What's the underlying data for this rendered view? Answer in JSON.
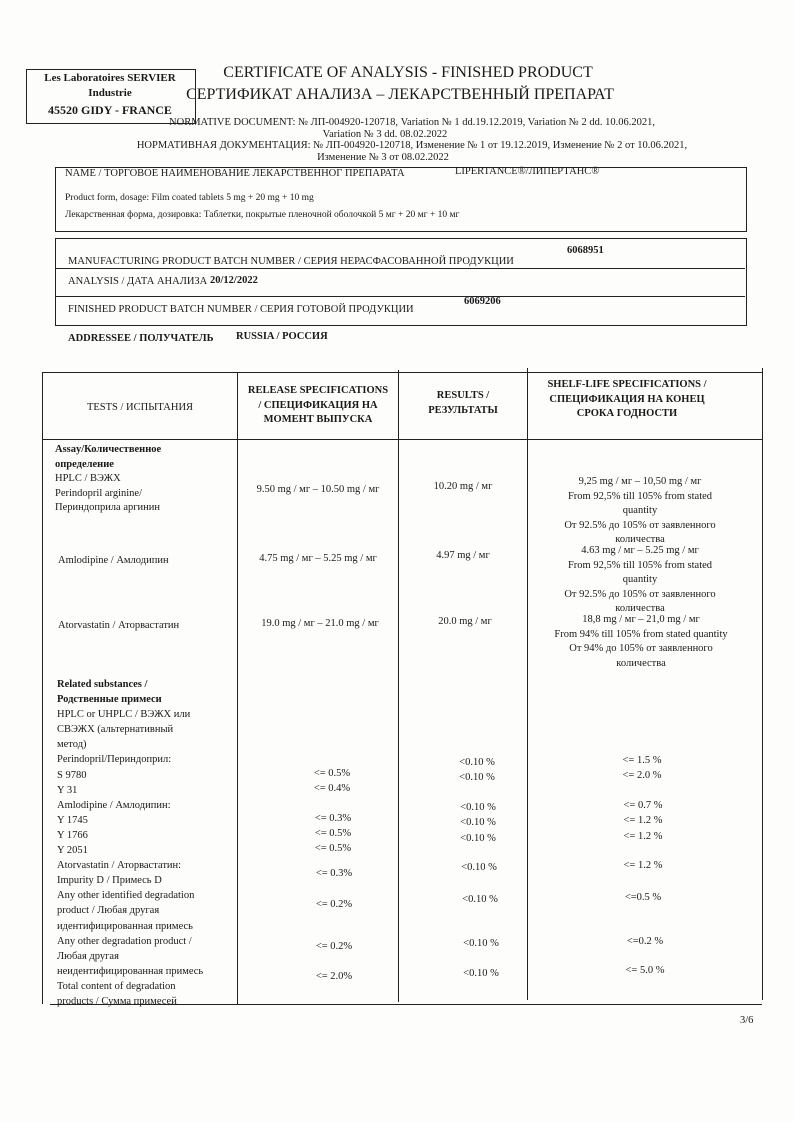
{
  "logo": {
    "line1": "Les Laboratoires SERVIER",
    "line2": "Industrie",
    "line3": "45520  GIDY - FRANCE"
  },
  "title": {
    "en": "CERTIFICATE OF ANALYSIS - FINISHED PRODUCT",
    "ru": "СЕРТИФИКАТ АНАЛИЗА – ЛЕКАРСТВЕННЫЙ ПРЕПАРАТ"
  },
  "normative": {
    "en1": "NORMATIVE DOCUMENT: № ЛП-004920-120718, Variation № 1 dd.19.12.2019, Variation № 2 dd. 10.06.2021,",
    "en2": "Variation № 3 dd. 08.02.2022",
    "ru1": "НОРМАТИВНАЯ ДОКУМЕНТАЦИЯ: № ЛП-004920-120718, Изменение № 1 от 19.12.2019, Изменение № 2 от 10.06.2021,",
    "ru2": "Изменение № 3 от 08.02.2022"
  },
  "product": {
    "name_label": "NAME / ТОРГОВОЕ НАИМЕНОВАНИЕ ЛЕКАРСТВЕННОГ ПРЕПАРАТА",
    "name_value": "LIPERTANCE®/ЛИПЕРТАНС®",
    "form_en": "Product form, dosage: Film coated tablets 5 mg + 20 mg + 10 mg",
    "form_ru": "Лекарственная форма, дозировка: Таблетки, покрытые пленочной оболочкой 5 мг + 20 мг + 10 мг"
  },
  "batch": {
    "mfg_label": "MANUFACTURING PRODUCT BATCH NUMBER / СЕРИЯ НЕРАСФАСОВАННОЙ ПРОДУКЦИИ",
    "mfg_value": "6068951",
    "analysis_label": "ANALYSIS / ДАТА АНАЛИЗА",
    "analysis_value": "20/12/2022",
    "finished_label": "FINISHED PRODUCT BATCH NUMBER / СЕРИЯ ГОТОВОЙ ПРОДУКЦИИ",
    "finished_value": "6069206"
  },
  "addressee": {
    "label": "ADDRESSEE / ПОЛУЧАТЕЛЬ",
    "value": "RUSSIA / РОССИЯ"
  },
  "table": {
    "headers": {
      "tests": "TESTS / ИСПЫТАНИЯ",
      "release": [
        "RELEASE SPECIFICATIONS",
        "/ СПЕЦИФИКАЦИЯ НА",
        "МОМЕНТ ВЫПУСКА"
      ],
      "results": [
        "RESULTS /",
        "РЕЗУЛЬТАТЫ"
      ],
      "shelf": [
        "SHELF-LIFE SPECIFICATIONS /",
        "СПЕЦИФИКАЦИЯ НА КОНЕЦ",
        "СРОКА ГОДНОСТИ"
      ]
    },
    "assay": {
      "title": [
        "Assay/Количественное",
        "определение"
      ],
      "method": "HPLC / ВЭЖХ",
      "perindopril": {
        "test": [
          "Perindopril arginine/",
          "Периндоприла аргинин"
        ],
        "release": "9.50 mg / мг – 10.50 mg / мг",
        "result": "10.20 mg / мг",
        "shelf": [
          "9,25 mg / мг – 10,50 mg / мг",
          "From 92,5% till 105% from stated",
          "quantity",
          "От 92.5% до 105% от заявленного",
          "количества"
        ]
      },
      "amlodipine": {
        "test": "Amlodipine / Амлодипин",
        "release": "4.75 mg / мг – 5.25 mg / мг",
        "result": "4.97  mg / мг",
        "shelf": [
          "4.63 mg / мг – 5.25 mg / мг",
          "From 92,5% till 105% from stated",
          "quantity",
          "От 92.5% до 105% от заявленного",
          "количества"
        ]
      },
      "atorvastatin": {
        "test": "Atorvastatin / Аторвастатин",
        "release": "19.0 mg / мг – 21.0 mg / мг",
        "result": "20.0 mg / мг",
        "shelf": [
          "18,8 mg / мг – 21,0 mg / мг",
          "From 94% till 105% from stated quantity",
          "От 94% до 105% от заявленного",
          "количества"
        ]
      }
    },
    "related": {
      "title": [
        "Related substances /",
        "Родственные примеси"
      ],
      "method": [
        "HPLC or UHPLC / ВЭЖХ или",
        "СВЭЖХ (альтернативный",
        "метод)"
      ],
      "perindopril_label": "Perindopril/Периндоприл:",
      "amlodipine_label": "Amlodipine / Амлодипин:",
      "atorvastatin_label": "Atorvastatin / Аторвастатин:",
      "rows": [
        {
          "test": "S 9780",
          "release": "<= 0.5%",
          "result": "<0.10 %",
          "shelf": "<= 1.5 %"
        },
        {
          "test": "Y 31",
          "release": "<= 0.4%",
          "result": "<0.10 %",
          "shelf": "<= 2.0 %"
        },
        {
          "test": "Y 1745",
          "release": "<= 0.3%",
          "result": "<0.10 %",
          "shelf": "<= 0.7 %"
        },
        {
          "test": "Y 1766",
          "release": "<= 0.5%",
          "result": "<0.10 %",
          "shelf": "<= 1.2 %"
        },
        {
          "test": "Y 2051",
          "release": "<= 0.5%",
          "result": "<0.10 %",
          "shelf": "<= 1.2 %"
        },
        {
          "test": "Impurity D / Примесь D",
          "release": "<= 0.3%",
          "result": "<0.10 %",
          "shelf": "<= 1.2 %"
        },
        {
          "test": [
            "Any other identified degradation",
            "product / Любая другая",
            "идентифицированная примесь"
          ],
          "release": "<= 0.2%",
          "result": "<0.10 %",
          "shelf": "<=0.5 %"
        },
        {
          "test": [
            "Any other degradation product /",
            "Любая другая",
            "неидентифицированная примесь"
          ],
          "release": "<= 0.2%",
          "result": "<0.10 %",
          "shelf": "<=0.2 %"
        },
        {
          "test": [
            "Total content of degradation",
            "products / Сумма примесей"
          ],
          "release": "<= 2.0%",
          "result": "<0.10 %",
          "shelf": "<= 5.0 %"
        }
      ]
    }
  },
  "page_number": "3/6"
}
